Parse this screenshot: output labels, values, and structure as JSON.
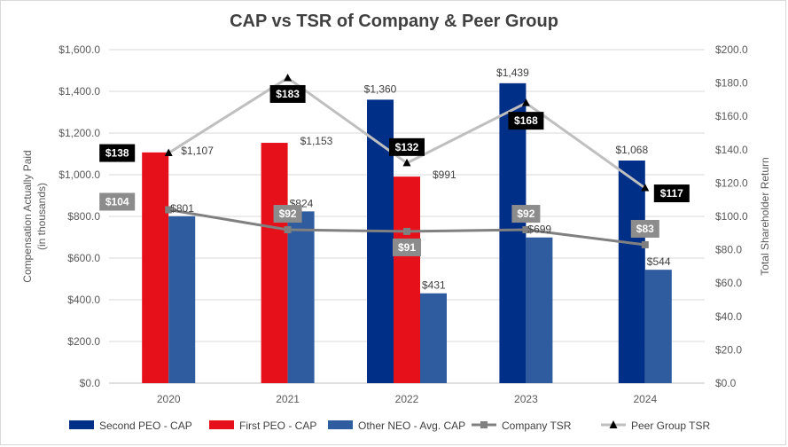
{
  "chart_data": {
    "type": "bar",
    "title": "CAP vs TSR of Company & Peer Group",
    "categories": [
      "2020",
      "2021",
      "2022",
      "2023",
      "2024"
    ],
    "ylabel_left": [
      "Compensation Actually Paid",
      "(in thousands)"
    ],
    "ylabel_right": "Total Shareholder Return",
    "ylim_left": [
      0,
      1600
    ],
    "ylim_right": [
      0,
      200
    ],
    "left_ticks": [
      "$0.0",
      "$200.0",
      "$400.0",
      "$600.0",
      "$800.0",
      "$1,000.0",
      "$1,200.0",
      "$1,400.0",
      "$1,600.0"
    ],
    "right_ticks": [
      "$0.0",
      "$20.0",
      "$40.0",
      "$60.0",
      "$80.0",
      "$100.0",
      "$120.0",
      "$140.0",
      "$160.0",
      "$180.0",
      "$200.0"
    ],
    "grid": true,
    "legend_position": "bottom",
    "series": [
      {
        "name": "Second PEO - CAP",
        "kind": "bar",
        "axis": "left",
        "color": "#002F87",
        "values": [
          null,
          null,
          1360,
          1439,
          1068
        ],
        "labels": [
          null,
          null,
          "$1,360",
          "$1,439",
          "$1,068"
        ]
      },
      {
        "name": "First PEO - CAP",
        "kind": "bar",
        "axis": "left",
        "color": "#E5101A",
        "values": [
          1107,
          1153,
          991,
          null,
          null
        ],
        "labels": [
          "$1,107",
          "$1,153",
          "$991",
          null,
          null
        ]
      },
      {
        "name": "Other NEO - Avg. CAP",
        "kind": "bar",
        "axis": "left",
        "color": "#2E5C9E",
        "values": [
          801,
          824,
          431,
          699,
          544
        ],
        "labels": [
          "$801",
          "$824",
          "$431",
          "$699",
          "$544"
        ]
      },
      {
        "name": "Company TSR",
        "kind": "line",
        "axis": "right",
        "color": "#808080",
        "marker": "square",
        "values": [
          104,
          92,
          91,
          92,
          83
        ],
        "labels": [
          "$104",
          "$92",
          "$91",
          "$92",
          "$83"
        ]
      },
      {
        "name": "Peer Group TSR",
        "kind": "line",
        "axis": "right",
        "color": "#BFBFBF",
        "marker": "triangle",
        "values": [
          138,
          183,
          132,
          168,
          117
        ],
        "labels": [
          "$138",
          "$183",
          "$132",
          "$168",
          "$117"
        ]
      }
    ]
  }
}
